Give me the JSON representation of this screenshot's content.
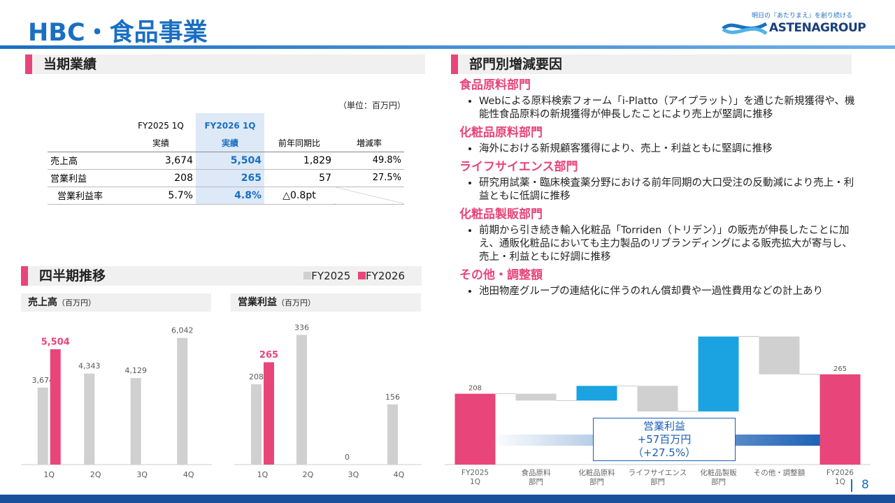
{
  "header": {
    "title": "HBC・食品事業",
    "tagline": "明日の『あたりまえ』を創り続ける",
    "logo": "ASTENAGROUP"
  },
  "page_number": 8,
  "results": {
    "heading": "当期業績",
    "unit": "（単位：百万円）",
    "columns": [
      {
        "period": "FY2025 1Q",
        "label": "実績"
      },
      {
        "period": "FY2026 1Q",
        "label": "実績"
      },
      {
        "label": "前年同期比"
      },
      {
        "label": "増減率"
      }
    ],
    "rows": [
      {
        "label": "売上高",
        "cells": [
          "3,674",
          "5,504",
          "1,829",
          "49.8%"
        ]
      },
      {
        "label": "営業利益",
        "cells": [
          "208",
          "265",
          "57",
          "27.5%"
        ]
      },
      {
        "label": "営業利益率",
        "cells": [
          "5.7%",
          "4.8%",
          "△0.8pt"
        ]
      }
    ]
  },
  "factors": {
    "heading": "部門別増減要因",
    "items": [
      {
        "title": "食品原料部門",
        "bullets": [
          "Webによる原料検索フォーム「i-Platto（アイプラット）」を通じた新規獲得や、機能性食品原料の新規獲得が伸長したことにより売上が堅調に推移"
        ]
      },
      {
        "title": "化粧品原料部門",
        "bullets": [
          "海外における新規顧客獲得により、売上・利益ともに堅調に推移"
        ]
      },
      {
        "title": "ライフサイエンス部門",
        "bullets": [
          "研究用試薬・臨床検査薬分野における前年同期の大口受注の反動減により売上・利益ともに低調に推移"
        ]
      },
      {
        "title": "化粧品製販部門",
        "bullets": [
          "前期から引き続き輸入化粧品「Torriden（トリデン）」の販売が伸長したことに加え、通販化粧品においても主力製品のリブランディングによる販売拡大が寄与し、売上・利益ともに好調に推移"
        ]
      },
      {
        "title": "その他・調整額",
        "bullets": [
          "池田物産グループの連結化に伴うのれん償却費や一過性費用などの計上あり"
        ]
      }
    ]
  },
  "quarterly": {
    "heading": "四半期推移"
  },
  "chart_data": [
    {
      "type": "bar",
      "title": "売上高",
      "subtitle": "（百万円）",
      "categories": [
        "1Q",
        "2Q",
        "3Q",
        "4Q"
      ],
      "series": [
        {
          "name": "FY2025",
          "color": "#d0d0d0",
          "values": [
            3674,
            4343,
            4129,
            6042
          ],
          "value_labels": [
            "3,674",
            "4,343",
            "4,129",
            "6,042"
          ]
        },
        {
          "name": "FY2026",
          "color": "#e8457a",
          "values": [
            5504,
            null,
            null,
            null
          ],
          "value_labels": [
            "5,504",
            null,
            null,
            null
          ]
        }
      ],
      "ylim": [
        0,
        7000
      ]
    },
    {
      "type": "bar",
      "title": "営業利益",
      "subtitle": "（百万円）",
      "categories": [
        "1Q",
        "2Q",
        "3Q",
        "4Q"
      ],
      "series": [
        {
          "color": "#d0d0d0",
          "values": [
            208,
            336,
            0,
            156
          ]
        },
        {
          "color": "#e8457a",
          "values": [
            265,
            null,
            null,
            null
          ]
        }
      ],
      "ylim": [
        0,
        380
      ]
    },
    {
      "type": "waterfall",
      "categories": [
        "FY2025\n1Q",
        "食品原料\n部門",
        "化粧品原料\n部門",
        "ライフサイエンス\n部門",
        "化粧品製販\n部門",
        "その他・調整額",
        "FY2026\n1Q"
      ],
      "values": [
        208,
        -20,
        43,
        -75,
        220,
        -111,
        265
      ],
      "colors": {
        "total": "#e8457a",
        "increase": "#1aa3e0",
        "decrease": "#d0d0d0"
      },
      "ylim": [
        0,
        400
      ],
      "annotation": [
        "営業利益",
        "+57百万円",
        "（+27.5%）"
      ]
    }
  ]
}
